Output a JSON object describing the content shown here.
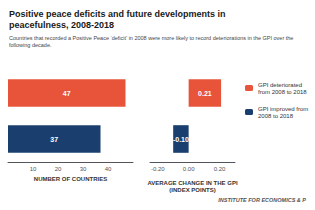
{
  "chart_data": [
    {
      "type": "bar",
      "orientation": "horizontal",
      "title": "Positive peace deficits and future developments in\npeacefulness, 2008-2018",
      "subtitle": "Countries that recorded a Positive Peace ‘deficit’ in 2008 were more likely to record deteriorations in the GPI over the\nfollowing decade.",
      "annotations": [
        "INSTITUTE FOR ECONOMICS & P"
      ],
      "xlabel": "NUMBER OF COUNTRIES",
      "xlim": [
        0,
        50
      ],
      "xticks": [
        10,
        20,
        30,
        40
      ],
      "grid": false,
      "data_labels": true,
      "tick_labels": "x",
      "series": [
        {
          "name": "GPI deteriorated\nfrom 2008 to 2018",
          "color": "#E8543A",
          "values": [
            47
          ]
        },
        {
          "name": "GPI improved from\n2008 to 2018",
          "color": "#1A3F6F",
          "values": [
            37
          ]
        }
      ]
    },
    {
      "type": "bar",
      "orientation": "horizontal",
      "xlabel": "AVERAGE CHANGE IN THE GPI\n(INDEX POINTS)",
      "xlim": [
        -0.25,
        0.3
      ],
      "xticks": [
        {
          "value": -0.2,
          "label": "-0.20"
        },
        {
          "value": 0,
          "label": "0.00"
        },
        {
          "value": 0.2,
          "label": "0.20"
        }
      ],
      "grid": false,
      "data_labels": true,
      "tick_labels": "x",
      "legend": "right",
      "series": [
        {
          "name": "GPI deteriorated\nfrom 2008 to 2018",
          "color": "#E8543A",
          "values": [
            0.21
          ],
          "value_labels": [
            "0.21"
          ]
        },
        {
          "name": "GPI improved from\n2008 to 2018",
          "color": "#1A3F6F",
          "values": [
            -0.1
          ],
          "value_labels": [
            "-0.10"
          ]
        }
      ]
    }
  ]
}
